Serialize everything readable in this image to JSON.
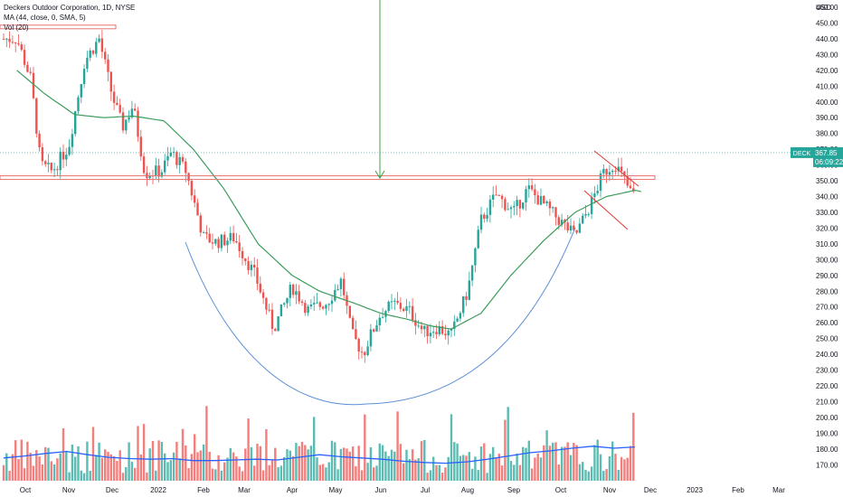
{
  "legend": {
    "title": "Deckers Outdoor Corporation, 1D, NYSE",
    "ma": "MA (44, close, 0, SMA, 5)",
    "vol": "Vol (20)"
  },
  "price_scale": {
    "currency": "USD",
    "ticks": [
      "460.00",
      "450.00",
      "440.00",
      "430.00",
      "420.00",
      "410.00",
      "400.00",
      "390.00",
      "380.00",
      "370.00",
      "360.00",
      "350.00",
      "340.00",
      "330.00",
      "320.00",
      "310.00",
      "300.00",
      "290.00",
      "280.00",
      "270.00",
      "260.00",
      "250.00",
      "240.00",
      "230.00",
      "220.00",
      "210.00",
      "200.00",
      "190.00",
      "180.00",
      "170.00"
    ]
  },
  "time_scale": {
    "ticks": [
      "Oct",
      "Nov",
      "Dec",
      "2022",
      "Feb",
      "Mar",
      "Apr",
      "May",
      "Jun",
      "Jul",
      "Aug",
      "Sep",
      "Oct",
      "Nov",
      "Dec",
      "2023",
      "Feb",
      "Mar"
    ]
  },
  "last_price": {
    "symbol": "DECK",
    "price": "367.85",
    "countdown": "06:09:22"
  },
  "chart_data": {
    "type": "candlestick",
    "symbol": "DECK",
    "interval": "1D",
    "exchange": "NYSE",
    "ylim": [
      166,
      466
    ],
    "ylabel": "USD",
    "close_series": {
      "x": [
        "2021-09-25",
        "2021-10-05",
        "2021-10-12",
        "2021-10-20",
        "2021-11-01",
        "2021-11-12",
        "2021-11-22",
        "2021-12-01",
        "2021-12-08",
        "2021-12-15",
        "2021-12-23",
        "2022-01-03",
        "2022-01-10",
        "2022-01-20",
        "2022-02-01",
        "2022-02-10",
        "2022-02-22",
        "2022-03-08",
        "2022-03-20",
        "2022-04-01",
        "2022-04-12",
        "2022-04-25",
        "2022-05-05",
        "2022-05-12",
        "2022-05-20",
        "2022-05-24",
        "2022-06-01",
        "2022-06-10",
        "2022-06-20",
        "2022-06-30",
        "2022-07-10",
        "2022-07-20",
        "2022-08-01",
        "2022-08-10",
        "2022-08-20",
        "2022-09-01",
        "2022-09-10",
        "2022-09-20",
        "2022-09-30",
        "2022-10-10",
        "2022-10-20",
        "2022-10-28",
        "2022-11-05",
        "2022-11-12",
        "2022-11-18",
        "2022-11-25"
      ],
      "values": [
        440,
        414,
        360,
        356,
        372,
        426,
        440,
        404,
        384,
        398,
        355,
        356,
        368,
        356,
        314,
        311,
        314,
        290,
        256,
        283,
        268,
        273,
        287,
        253,
        240,
        250,
        266,
        272,
        268,
        254,
        257,
        252,
        280,
        325,
        341,
        330,
        345,
        335,
        325,
        315,
        335,
        355,
        361,
        350,
        340,
        367.85
      ]
    },
    "moving_average": {
      "name": "MA (44, close, 0, SMA, 5)",
      "x": [
        "2021-09-25",
        "2021-10-15",
        "2021-11-05",
        "2021-11-25",
        "2021-12-15",
        "2022-01-05",
        "2022-01-25",
        "2022-02-15",
        "2022-03-10",
        "2022-04-01",
        "2022-04-20",
        "2022-05-15",
        "2022-06-01",
        "2022-06-20",
        "2022-07-05",
        "2022-07-20",
        "2022-08-10",
        "2022-08-30",
        "2022-09-20",
        "2022-10-10",
        "2022-10-30",
        "2022-11-20",
        "2022-11-25"
      ],
      "values": [
        420,
        405,
        392,
        390,
        391,
        388,
        370,
        345,
        310,
        290,
        280,
        272,
        266,
        262,
        258,
        256,
        266,
        290,
        312,
        330,
        340,
        344,
        343
      ]
    },
    "volume": {
      "name": "Vol (20)",
      "unit": "relative",
      "avg_values": [
        0.35,
        0.38,
        0.42,
        0.45,
        0.4,
        0.36,
        0.34,
        0.33,
        0.34,
        0.31,
        0.31,
        0.32,
        0.33,
        0.32,
        0.36,
        0.4,
        0.37,
        0.35,
        0.33,
        0.3,
        0.28,
        0.27,
        0.29,
        0.33,
        0.38,
        0.43,
        0.46,
        0.5,
        0.53,
        0.5,
        0.52
      ]
    },
    "horizontal_lines": [
      {
        "label": "resistance",
        "value": 352
      },
      {
        "label": "top",
        "value": 447.5
      }
    ],
    "annotations": [
      "cup curve",
      "down arrow",
      "falling wedge"
    ],
    "grid": false
  },
  "colors": {
    "up": "#26a69a",
    "down": "#ef5350",
    "ma": "#3c9c5a",
    "volume_avg": "#2962ff",
    "cup": "#5b8fd6",
    "wedge": "#e53935",
    "arrow": "#43a047",
    "resistance": "#e57373"
  }
}
